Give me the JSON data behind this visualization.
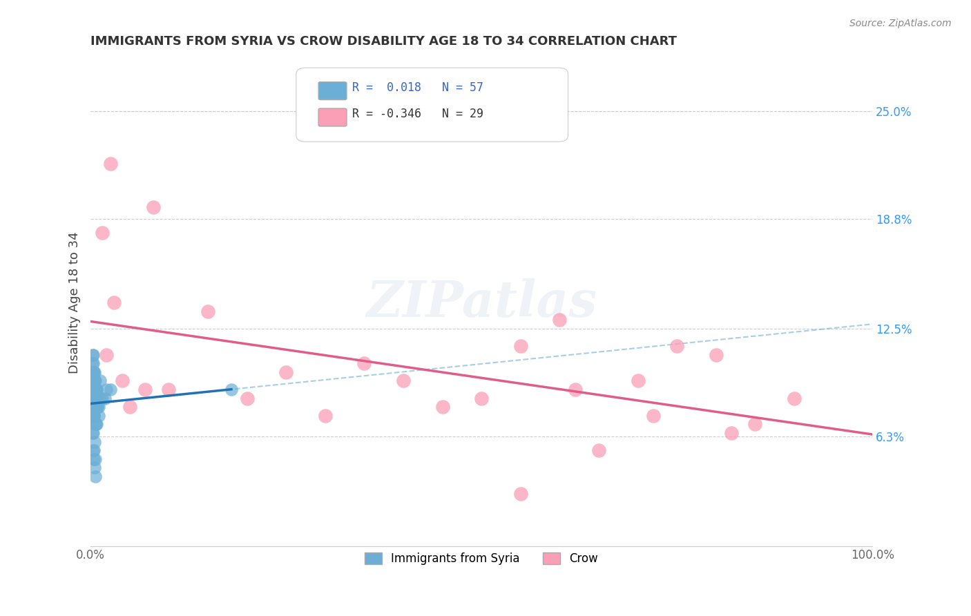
{
  "title": "IMMIGRANTS FROM SYRIA VS CROW DISABILITY AGE 18 TO 34 CORRELATION CHART",
  "source": "Source: ZipAtlas.com",
  "xlabel": "",
  "ylabel": "Disability Age 18 to 34",
  "xlim": [
    0,
    100
  ],
  "ylim": [
    0,
    28
  ],
  "xtick_labels": [
    "0.0%",
    "100.0%"
  ],
  "xtick_positions": [
    0,
    100
  ],
  "ytick_labels_right": [
    "6.3%",
    "12.5%",
    "18.8%",
    "25.0%"
  ],
  "ytick_positions_right": [
    6.3,
    12.5,
    18.8,
    25.0
  ],
  "legend_blue_r": "0.018",
  "legend_blue_n": "57",
  "legend_pink_r": "-0.346",
  "legend_pink_n": "29",
  "legend_label_blue": "Immigrants from Syria",
  "legend_label_pink": "Crow",
  "scatter_blue_x": [
    0.5,
    0.3,
    0.2,
    0.4,
    0.6,
    0.1,
    0.3,
    0.5,
    0.7,
    0.2,
    0.4,
    0.6,
    0.8,
    0.3,
    0.5,
    1.2,
    0.9,
    1.5,
    2.0,
    0.4,
    0.6,
    0.8,
    1.0,
    0.3,
    0.5,
    0.2,
    0.7,
    1.8,
    2.5,
    0.4,
    0.6,
    0.3,
    0.5,
    0.2,
    0.8,
    1.0,
    0.4,
    0.7,
    0.3,
    0.5,
    0.2,
    0.6,
    0.9,
    0.4,
    1.2,
    0.3,
    0.5,
    0.7,
    0.4,
    0.6,
    0.2,
    0.8,
    0.5,
    0.3,
    0.6,
    0.4,
    18.0
  ],
  "scatter_blue_y": [
    8.0,
    7.5,
    9.0,
    8.5,
    7.0,
    9.5,
    10.0,
    8.0,
    9.0,
    10.5,
    7.5,
    8.5,
    9.0,
    11.0,
    10.0,
    9.5,
    8.0,
    8.5,
    9.0,
    10.0,
    8.5,
    9.0,
    8.0,
    10.5,
    9.0,
    11.0,
    8.5,
    8.5,
    9.0,
    7.5,
    9.5,
    8.0,
    8.5,
    10.0,
    8.0,
    7.5,
    9.5,
    8.0,
    10.0,
    9.5,
    8.5,
    9.0,
    8.0,
    7.5,
    8.5,
    6.5,
    6.0,
    7.0,
    5.5,
    5.0,
    6.5,
    7.0,
    4.5,
    5.5,
    4.0,
    5.0,
    9.0
  ],
  "scatter_pink_x": [
    2.5,
    1.5,
    8.0,
    3.0,
    5.0,
    2.0,
    4.0,
    7.0,
    55.0,
    65.0,
    75.0,
    80.0,
    90.0,
    85.0,
    70.0,
    60.0,
    50.0,
    45.0,
    30.0,
    20.0,
    10.0,
    15.0,
    25.0,
    35.0,
    40.0,
    55.0,
    62.0,
    72.0,
    82.0
  ],
  "scatter_pink_y": [
    22.0,
    18.0,
    19.5,
    14.0,
    8.0,
    11.0,
    9.5,
    9.0,
    3.0,
    5.5,
    11.5,
    11.0,
    8.5,
    7.0,
    9.5,
    13.0,
    8.5,
    8.0,
    7.5,
    8.5,
    9.0,
    13.5,
    10.0,
    10.5,
    9.5,
    11.5,
    9.0,
    7.5,
    6.5
  ],
  "blue_line_x": [
    0,
    18
  ],
  "blue_line_y": [
    8.8,
    9.1
  ],
  "pink_line_x": [
    0,
    100
  ],
  "pink_line_y": [
    12.8,
    7.0
  ],
  "blue_color": "#6baed6",
  "pink_color": "#fa9fb5",
  "blue_line_color": "#2171b5",
  "pink_line_color": "#e05c8a",
  "blue_dashed_color": "#6baed6",
  "watermark": "ZIPatlas",
  "background_color": "#ffffff",
  "grid_color": "#cccccc"
}
